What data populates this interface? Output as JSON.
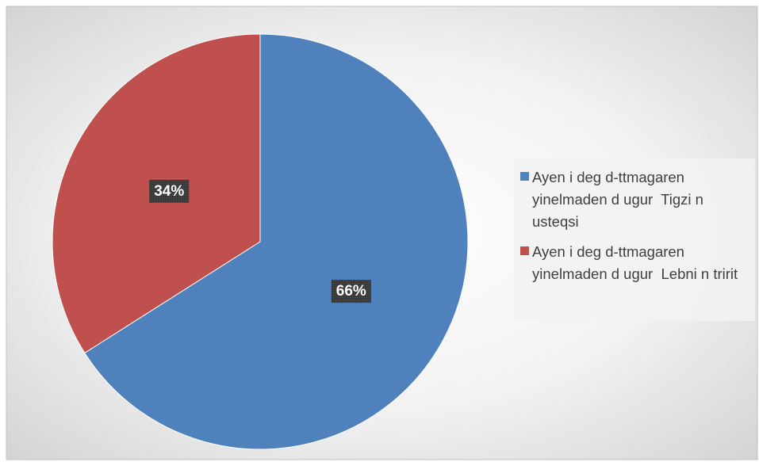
{
  "chart_data": {
    "type": "pie",
    "categories": [
      "Ayen i deg d-ttmagaren yinelmaden d ugur  Tigzi n usteqsi",
      "Ayen i deg d-ttmagaren yinelmaden d ugur  Lebni n tririt"
    ],
    "values": [
      66,
      34
    ],
    "value_labels": [
      "66%",
      "34%"
    ],
    "colors": [
      "#4f81bd",
      "#c0504d"
    ],
    "legend": "right"
  }
}
